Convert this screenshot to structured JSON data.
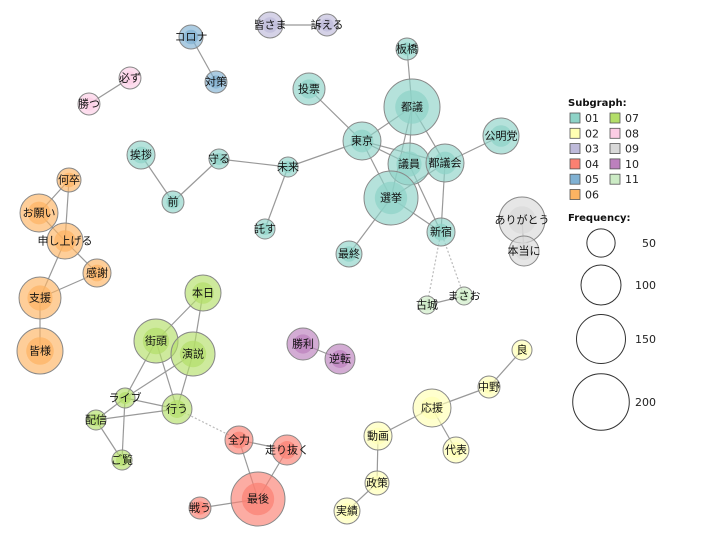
{
  "colors": {
    "01": "#8dd3c7",
    "02": "#ffffb3",
    "03": "#bebada",
    "04": "#fb8072",
    "05": "#80b1d3",
    "06": "#fdb462",
    "07": "#b3de69",
    "08": "#fccde5",
    "09": "#d9d9d9",
    "10": "#bc80bd",
    "11": "#ccebc5"
  },
  "legend": {
    "subgraph_title": "Subgraph:",
    "subgraphs": [
      "01",
      "02",
      "03",
      "04",
      "05",
      "06",
      "07",
      "08",
      "09",
      "10",
      "11"
    ],
    "frequency_title": "Frequency:",
    "frequencies": [
      "50",
      "100",
      "150",
      "200"
    ]
  },
  "nodes": [
    {
      "label": "皆さま",
      "group": "03",
      "freq": 42
    },
    {
      "label": "訴える",
      "group": "03",
      "freq": 30
    },
    {
      "label": "コロナ",
      "group": "05",
      "freq": 36
    },
    {
      "label": "対策",
      "group": "05",
      "freq": 30
    },
    {
      "label": "必ず",
      "group": "08",
      "freq": 30
    },
    {
      "label": "勝つ",
      "group": "08",
      "freq": 30
    },
    {
      "label": "投票",
      "group": "01",
      "freq": 64
    },
    {
      "label": "都議",
      "group": "01",
      "freq": 196
    },
    {
      "label": "板橋",
      "group": "01",
      "freq": 30
    },
    {
      "label": "東京",
      "group": "01",
      "freq": 90
    },
    {
      "label": "議員",
      "group": "01",
      "freq": 110
    },
    {
      "label": "都議会",
      "group": "01",
      "freq": 90
    },
    {
      "label": "公明党",
      "group": "01",
      "freq": 81
    },
    {
      "label": "選挙",
      "group": "01",
      "freq": 182
    },
    {
      "label": "新宿",
      "group": "01",
      "freq": 49
    },
    {
      "label": "最終",
      "group": "01",
      "freq": 42
    },
    {
      "label": "古城",
      "group": "11",
      "freq": 20
    },
    {
      "label": "まさお",
      "group": "11",
      "freq": 20
    },
    {
      "label": "ありがとう",
      "group": "09",
      "freq": 132
    },
    {
      "label": "本当に",
      "group": "09",
      "freq": 56
    },
    {
      "label": "挨拶",
      "group": "01",
      "freq": 49
    },
    {
      "label": "前",
      "group": "01",
      "freq": 30
    },
    {
      "label": "守る",
      "group": "01",
      "freq": 25
    },
    {
      "label": "未来",
      "group": "01",
      "freq": 25
    },
    {
      "label": "託す",
      "group": "01",
      "freq": 25
    },
    {
      "label": "何卒",
      "group": "06",
      "freq": 36
    },
    {
      "label": "お願い",
      "group": "06",
      "freq": 90
    },
    {
      "label": "申し上げる",
      "group": "06",
      "freq": 81
    },
    {
      "label": "感謝",
      "group": "06",
      "freq": 49
    },
    {
      "label": "支援",
      "group": "06",
      "freq": 110
    },
    {
      "label": "皆様",
      "group": "06",
      "freq": 132
    },
    {
      "label": "本日",
      "group": "07",
      "freq": 81
    },
    {
      "label": "街頭",
      "group": "07",
      "freq": 121
    },
    {
      "label": "演説",
      "group": "07",
      "freq": 121
    },
    {
      "label": "ライブ",
      "group": "07",
      "freq": 25
    },
    {
      "label": "行う",
      "group": "07",
      "freq": 56
    },
    {
      "label": "配信",
      "group": "07",
      "freq": 25
    },
    {
      "label": "ご覧",
      "group": "07",
      "freq": 25
    },
    {
      "label": "全力",
      "group": "04",
      "freq": 49
    },
    {
      "label": "走り抜く",
      "group": "04",
      "freq": 56
    },
    {
      "label": "最後",
      "group": "04",
      "freq": 182
    },
    {
      "label": "戦う",
      "group": "04",
      "freq": 30
    },
    {
      "label": "勝利",
      "group": "10",
      "freq": 64
    },
    {
      "label": "逆転",
      "group": "10",
      "freq": 56
    },
    {
      "label": "良",
      "group": "02",
      "freq": 25
    },
    {
      "label": "中野",
      "group": "02",
      "freq": 30
    },
    {
      "label": "応援",
      "group": "02",
      "freq": 90
    },
    {
      "label": "動画",
      "group": "02",
      "freq": 49
    },
    {
      "label": "代表",
      "group": "02",
      "freq": 42
    },
    {
      "label": "政策",
      "group": "02",
      "freq": 36
    },
    {
      "label": "実績",
      "group": "02",
      "freq": 42
    }
  ],
  "edges": [
    [
      "皆さま",
      "訴える",
      false
    ],
    [
      "コロナ",
      "対策",
      false
    ],
    [
      "必ず",
      "勝つ",
      false
    ],
    [
      "挨拶",
      "前",
      false
    ],
    [
      "前",
      "守る",
      false
    ],
    [
      "守る",
      "未来",
      false
    ],
    [
      "未来",
      "東京",
      false
    ],
    [
      "未来",
      "託す",
      false
    ],
    [
      "投票",
      "東京",
      false
    ],
    [
      "板橋",
      "都議",
      false
    ],
    [
      "東京",
      "都議",
      false
    ],
    [
      "東京",
      "議員",
      false
    ],
    [
      "東京",
      "都議会",
      false
    ],
    [
      "東京",
      "選挙",
      false
    ],
    [
      "都議",
      "議員",
      false
    ],
    [
      "都議",
      "都議会",
      false
    ],
    [
      "都議",
      "選挙",
      false
    ],
    [
      "議員",
      "新宿",
      false
    ],
    [
      "都議会",
      "公明党",
      false
    ],
    [
      "都議会",
      "新宿",
      false
    ],
    [
      "選挙",
      "最終",
      false
    ],
    [
      "選挙",
      "新宿",
      false
    ],
    [
      "選挙",
      "都議会",
      false
    ],
    [
      "新宿",
      "古城",
      true
    ],
    [
      "新宿",
      "まさお",
      true
    ],
    [
      "古城",
      "まさお",
      false
    ],
    [
      "ありがとう",
      "本当に",
      false
    ],
    [
      "何卒",
      "お願い",
      false
    ],
    [
      "何卒",
      "申し上げる",
      false
    ],
    [
      "お願い",
      "申し上げる",
      false
    ],
    [
      "申し上げる",
      "感謝",
      false
    ],
    [
      "申し上げる",
      "支援",
      false
    ],
    [
      "感謝",
      "支援",
      false
    ],
    [
      "支援",
      "皆様",
      false
    ],
    [
      "本日",
      "街頭",
      false
    ],
    [
      "本日",
      "演説",
      false
    ],
    [
      "街頭",
      "ライブ",
      false
    ],
    [
      "街頭",
      "行う",
      false
    ],
    [
      "演説",
      "行う",
      false
    ],
    [
      "演説",
      "ライブ",
      false
    ],
    [
      "ライブ",
      "行う",
      false
    ],
    [
      "ライブ",
      "配信",
      false
    ],
    [
      "ライブ",
      "ご覧",
      false
    ],
    [
      "配信",
      "行う",
      false
    ],
    [
      "配信",
      "ご覧",
      false
    ],
    [
      "行う",
      "全力",
      true
    ],
    [
      "全力",
      "走り抜く",
      false
    ],
    [
      "全力",
      "最後",
      false
    ],
    [
      "走り抜く",
      "最後",
      false
    ],
    [
      "最後",
      "戦う",
      false
    ],
    [
      "勝利",
      "逆転",
      false
    ],
    [
      "良",
      "中野",
      false
    ],
    [
      "中野",
      "応援",
      false
    ],
    [
      "応援",
      "動画",
      false
    ],
    [
      "応援",
      "代表",
      false
    ],
    [
      "動画",
      "政策",
      false
    ],
    [
      "政策",
      "実績",
      false
    ]
  ]
}
